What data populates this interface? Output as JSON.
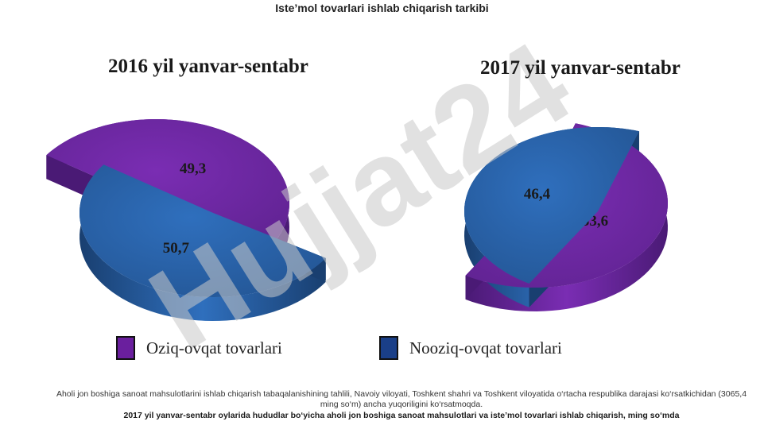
{
  "page": {
    "title": "Iste’mol tovarlari ishlab chiqarish tarkibi",
    "note": "Aholi jon boshiga sanoat mahsulotlarini ishlab chiqarish tabaqalanishining tahlili, Navoiy viloyati, Toshkent shahri va Toshkent viloyatida o‘rtacha respublika darajasi ko‘rsatkichidan (3065,4 ming so‘m) ancha yuqoriligini ko‘rsatmoqda.",
    "caption": "2017 yil yanvar-sentabr oylarida hududlar bo‘yicha aholi jon boshiga sanoat mahsulotlari va iste’mol tovarlari ishlab chiqarish, ming so‘mda",
    "watermark": "Hujjat24"
  },
  "colors": {
    "food": "#7a2db3",
    "food_dark": "#4a1a75",
    "nonfood": "#2f6fbd",
    "nonfood_dark": "#193f70",
    "watermark": "#c9c9c9"
  },
  "legend": [
    {
      "label": "Oziq-ovqat tovarlari",
      "color": "#6a1f9e"
    },
    {
      "label": "Nooziq-ovqat tovarlari",
      "color": "#1a3f88"
    }
  ],
  "chart_data": [
    {
      "type": "pie",
      "title": "2016  yil yanvar-sentabr",
      "series": [
        {
          "name": "Oziq-ovqat tovarlari",
          "value": 49.3,
          "label": "49,3"
        },
        {
          "name": "Nooziq-ovqat tovarlari",
          "value": 50.7,
          "label": "50,7"
        }
      ],
      "exploded": true,
      "style": "3d"
    },
    {
      "type": "pie",
      "title": "2017 yil yanvar-sentabr",
      "series": [
        {
          "name": "Oziq-ovqat tovarlari",
          "value": 53.6,
          "label": "53,6"
        },
        {
          "name": "Nooziq-ovqat tovarlari",
          "value": 46.4,
          "label": "46,4"
        }
      ],
      "exploded": true,
      "style": "3d"
    }
  ]
}
